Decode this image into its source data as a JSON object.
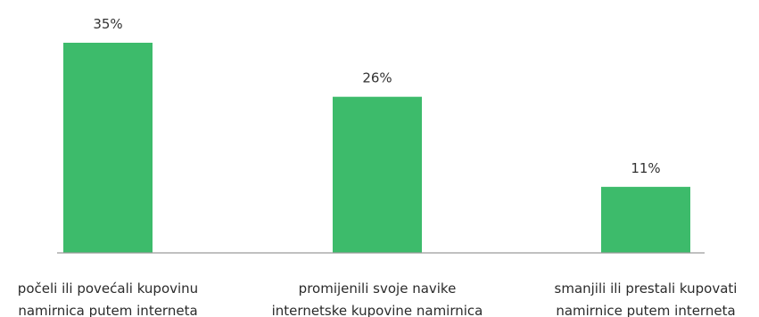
{
  "chart_data": {
    "type": "bar",
    "categories": [
      [
        "počeli ili povećali kupovinu",
        "namirnica putem interneta"
      ],
      [
        "promijenili svoje navike",
        "internetske kupovine namirnica"
      ],
      [
        "smanjili ili prestali kupovati",
        "namirnice putem interneta"
      ]
    ],
    "values": [
      35,
      26,
      11
    ],
    "value_labels": [
      "35%",
      "26%",
      "11%"
    ],
    "unit": "%",
    "title": "",
    "xlabel": "",
    "ylabel": "",
    "ylim": [
      0,
      35
    ],
    "grid": false,
    "legend": "none",
    "colors": {
      "bar": "#3dbb6b",
      "baseline": "#9a9a9a",
      "text": "#333333"
    }
  }
}
